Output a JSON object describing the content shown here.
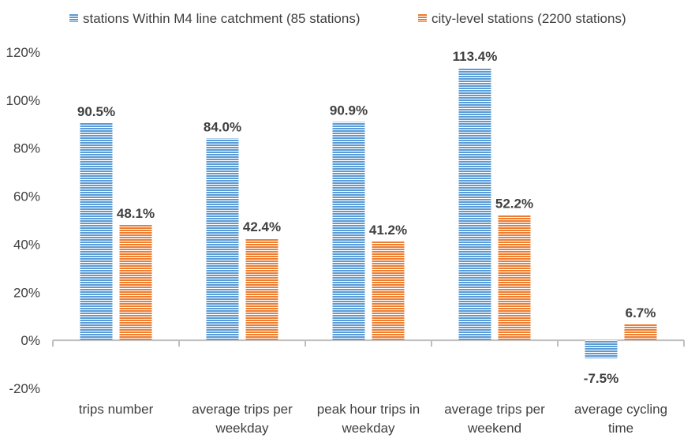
{
  "chart_data": {
    "type": "bar",
    "title": "",
    "xlabel": "",
    "ylabel": "",
    "categories": [
      [
        "trips number"
      ],
      [
        "average trips per",
        "weekday"
      ],
      [
        "peak hour trips in",
        "weekday"
      ],
      [
        "average trips per",
        "weekend"
      ],
      [
        "average cycling",
        "time"
      ]
    ],
    "series": [
      {
        "name": "stations Within M4 line catchment (85 stations)",
        "color": "#5B9BD5",
        "values": [
          90.5,
          84.0,
          90.9,
          113.4,
          -7.5
        ],
        "labels": [
          "90.5%",
          "84.0%",
          "90.9%",
          "113.4%",
          "-7.5%"
        ]
      },
      {
        "name": "city-level stations (2200 stations)",
        "color": "#ED7D31",
        "values": [
          48.1,
          42.4,
          41.2,
          52.2,
          6.7
        ],
        "labels": [
          "48.1%",
          "42.4%",
          "41.2%",
          "52.2%",
          "6.7%"
        ]
      }
    ],
    "ylim": [
      -20,
      120
    ],
    "yticks": [
      -20,
      0,
      20,
      40,
      60,
      80,
      100,
      120
    ],
    "ytick_labels": [
      "-20%",
      "0%",
      "20%",
      "40%",
      "60%",
      "80%",
      "100%",
      "120%"
    ],
    "grid": false,
    "legend_position": "top",
    "bar_pattern": "horizontal-stripes"
  }
}
